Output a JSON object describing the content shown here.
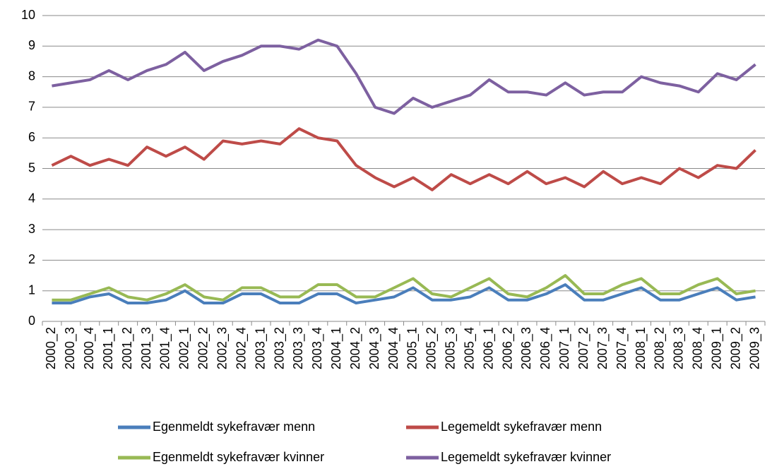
{
  "chart_data": {
    "type": "line",
    "categories": [
      "2000_2",
      "2000_3",
      "2000_4",
      "2001_1",
      "2001_2",
      "2001_3",
      "2001_4",
      "2002_1",
      "2002_2",
      "2002_3",
      "2002_4",
      "2003_1",
      "2003_2",
      "2003_3",
      "2003_4",
      "2004_1",
      "2004_2",
      "2004_3",
      "2004_4",
      "2005_1",
      "2005_2",
      "2005_3",
      "2005_4",
      "2006_1",
      "2006_2",
      "2006_3",
      "2006_4",
      "2007_1",
      "2007_2",
      "2007_3",
      "2007_4",
      "2008_1",
      "2008_2",
      "2008_3",
      "2008_4",
      "2009_1",
      "2009_2",
      "2009_3"
    ],
    "series": [
      {
        "name": "Egenmeldt sykefravær menn",
        "color": "#4a7ebb",
        "values": [
          0.6,
          0.6,
          0.8,
          0.9,
          0.6,
          0.6,
          0.7,
          1.0,
          0.6,
          0.6,
          0.9,
          0.9,
          0.6,
          0.6,
          0.9,
          0.9,
          0.6,
          0.7,
          0.8,
          1.1,
          0.7,
          0.7,
          0.8,
          1.1,
          0.7,
          0.7,
          0.9,
          1.2,
          0.7,
          0.7,
          0.9,
          1.1,
          0.7,
          0.7,
          0.9,
          1.1,
          0.7,
          0.8
        ]
      },
      {
        "name": "Legemeldt sykefravær menn",
        "color": "#be4b48",
        "values": [
          5.1,
          5.4,
          5.1,
          5.3,
          5.1,
          5.7,
          5.4,
          5.7,
          5.3,
          5.9,
          5.8,
          5.9,
          5.8,
          6.3,
          6.0,
          5.9,
          5.1,
          4.7,
          4.4,
          4.7,
          4.3,
          4.8,
          4.5,
          4.8,
          4.5,
          4.9,
          4.5,
          4.7,
          4.4,
          4.9,
          4.5,
          4.7,
          4.5,
          5.0,
          4.7,
          5.1,
          5.0,
          5.6
        ]
      },
      {
        "name": "Egenmeldt sykefravær kvinner",
        "color": "#98b954",
        "values": [
          0.7,
          0.7,
          0.9,
          1.1,
          0.8,
          0.7,
          0.9,
          1.2,
          0.8,
          0.7,
          1.1,
          1.1,
          0.8,
          0.8,
          1.2,
          1.2,
          0.8,
          0.8,
          1.1,
          1.4,
          0.9,
          0.8,
          1.1,
          1.4,
          0.9,
          0.8,
          1.1,
          1.5,
          0.9,
          0.9,
          1.2,
          1.4,
          0.9,
          0.9,
          1.2,
          1.4,
          0.9,
          1.0
        ]
      },
      {
        "name": "Legemeldt sykefravær kvinner",
        "color": "#7d60a0",
        "values": [
          7.7,
          7.8,
          7.9,
          8.2,
          7.9,
          8.2,
          8.4,
          8.8,
          8.2,
          8.5,
          8.7,
          9.0,
          9.0,
          8.9,
          9.2,
          9.0,
          8.1,
          7.0,
          6.8,
          7.3,
          7.0,
          7.2,
          7.4,
          7.9,
          7.5,
          7.5,
          7.4,
          7.8,
          7.4,
          7.5,
          7.5,
          8.0,
          7.8,
          7.7,
          7.5,
          8.1,
          7.9,
          8.4
        ]
      }
    ],
    "ylim": [
      0,
      10
    ],
    "yticks": [
      0,
      1,
      2,
      3,
      4,
      5,
      6,
      7,
      8,
      9,
      10
    ],
    "grid": true,
    "legend": "bottom"
  }
}
